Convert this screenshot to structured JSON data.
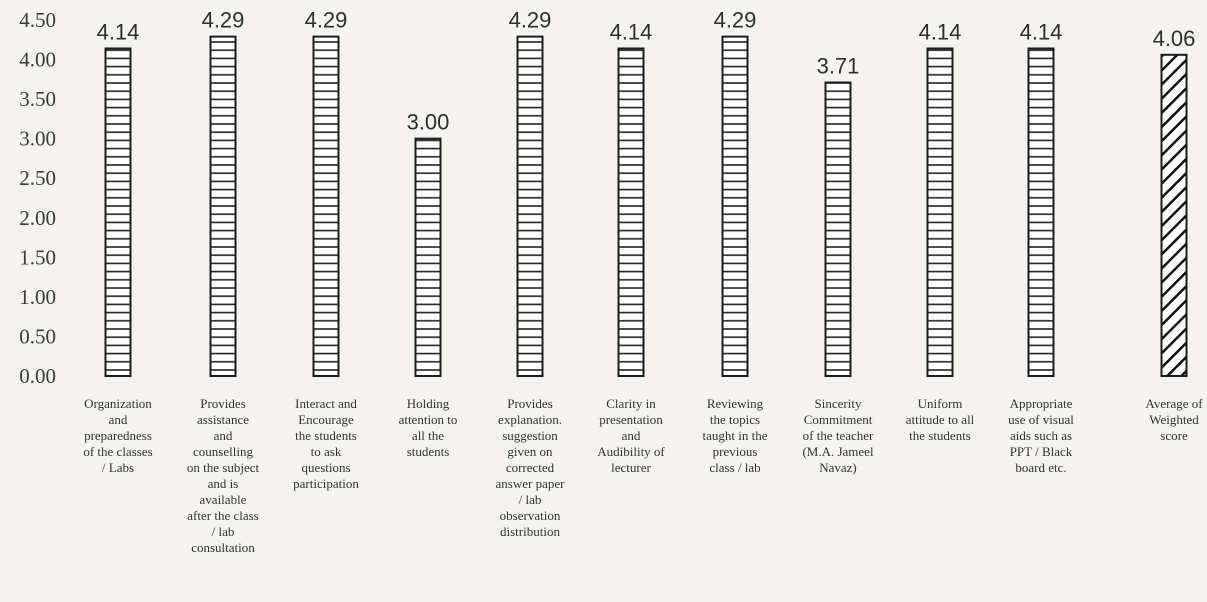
{
  "chart_data": {
    "type": "bar",
    "categories": [
      "Organization\nand\npreparedness\nof the classes\n/ Labs",
      "Provides\nassistance\nand\ncounselling\non the subject\nand is\navailable\nafter the class\n/ lab\nconsultation",
      "Interact and\nEncourage\nthe students\nto ask\nquestions\nparticipation",
      "Holding\nattention to\nall the\nstudents",
      "Provides\nexplanation.\nsuggestion\ngiven on\ncorrected\nanswer paper\n/ lab\nobservation\ndistribution",
      "Clarity in\npresentation\nand\nAudibility of\nlecturer",
      "Reviewing\nthe topics\ntaught in the\nprevious\nclass / lab",
      "Sincerity\nCommitment\nof the teacher\n(M.A. Jameel\nNavaz)",
      "Uniform\nattitude to all\nthe students",
      "Appropriate\nuse of visual\naids such as\nPPT / Black\nboard etc.",
      "Average of\nWeighted\nscore"
    ],
    "values": [
      4.14,
      4.29,
      4.29,
      3.0,
      4.29,
      4.14,
      4.29,
      3.71,
      4.14,
      4.14,
      4.06
    ],
    "value_labels": [
      "4.14",
      "4.29",
      "4.29",
      "3.00",
      "4.29",
      "4.14",
      "4.29",
      "3.71",
      "4.14",
      "4.14",
      "4.06"
    ],
    "bar_patterns": [
      "horizontal",
      "horizontal",
      "horizontal",
      "horizontal",
      "horizontal",
      "horizontal",
      "horizontal",
      "horizontal",
      "horizontal",
      "horizontal",
      "diagonal"
    ],
    "yticks": [
      "0.00",
      "0.50",
      "1.00",
      "1.50",
      "2.00",
      "2.50",
      "3.00",
      "3.50",
      "4.00",
      "4.50"
    ],
    "ylim": [
      0,
      4.5
    ],
    "title": "",
    "xlabel": "",
    "ylabel": "",
    "grid": false,
    "legend": "none",
    "colors": {
      "bar_stroke": "#1c1c1c",
      "bar_fill": "#ffffff",
      "text": "#333333",
      "background": "#f4f3ef"
    }
  }
}
